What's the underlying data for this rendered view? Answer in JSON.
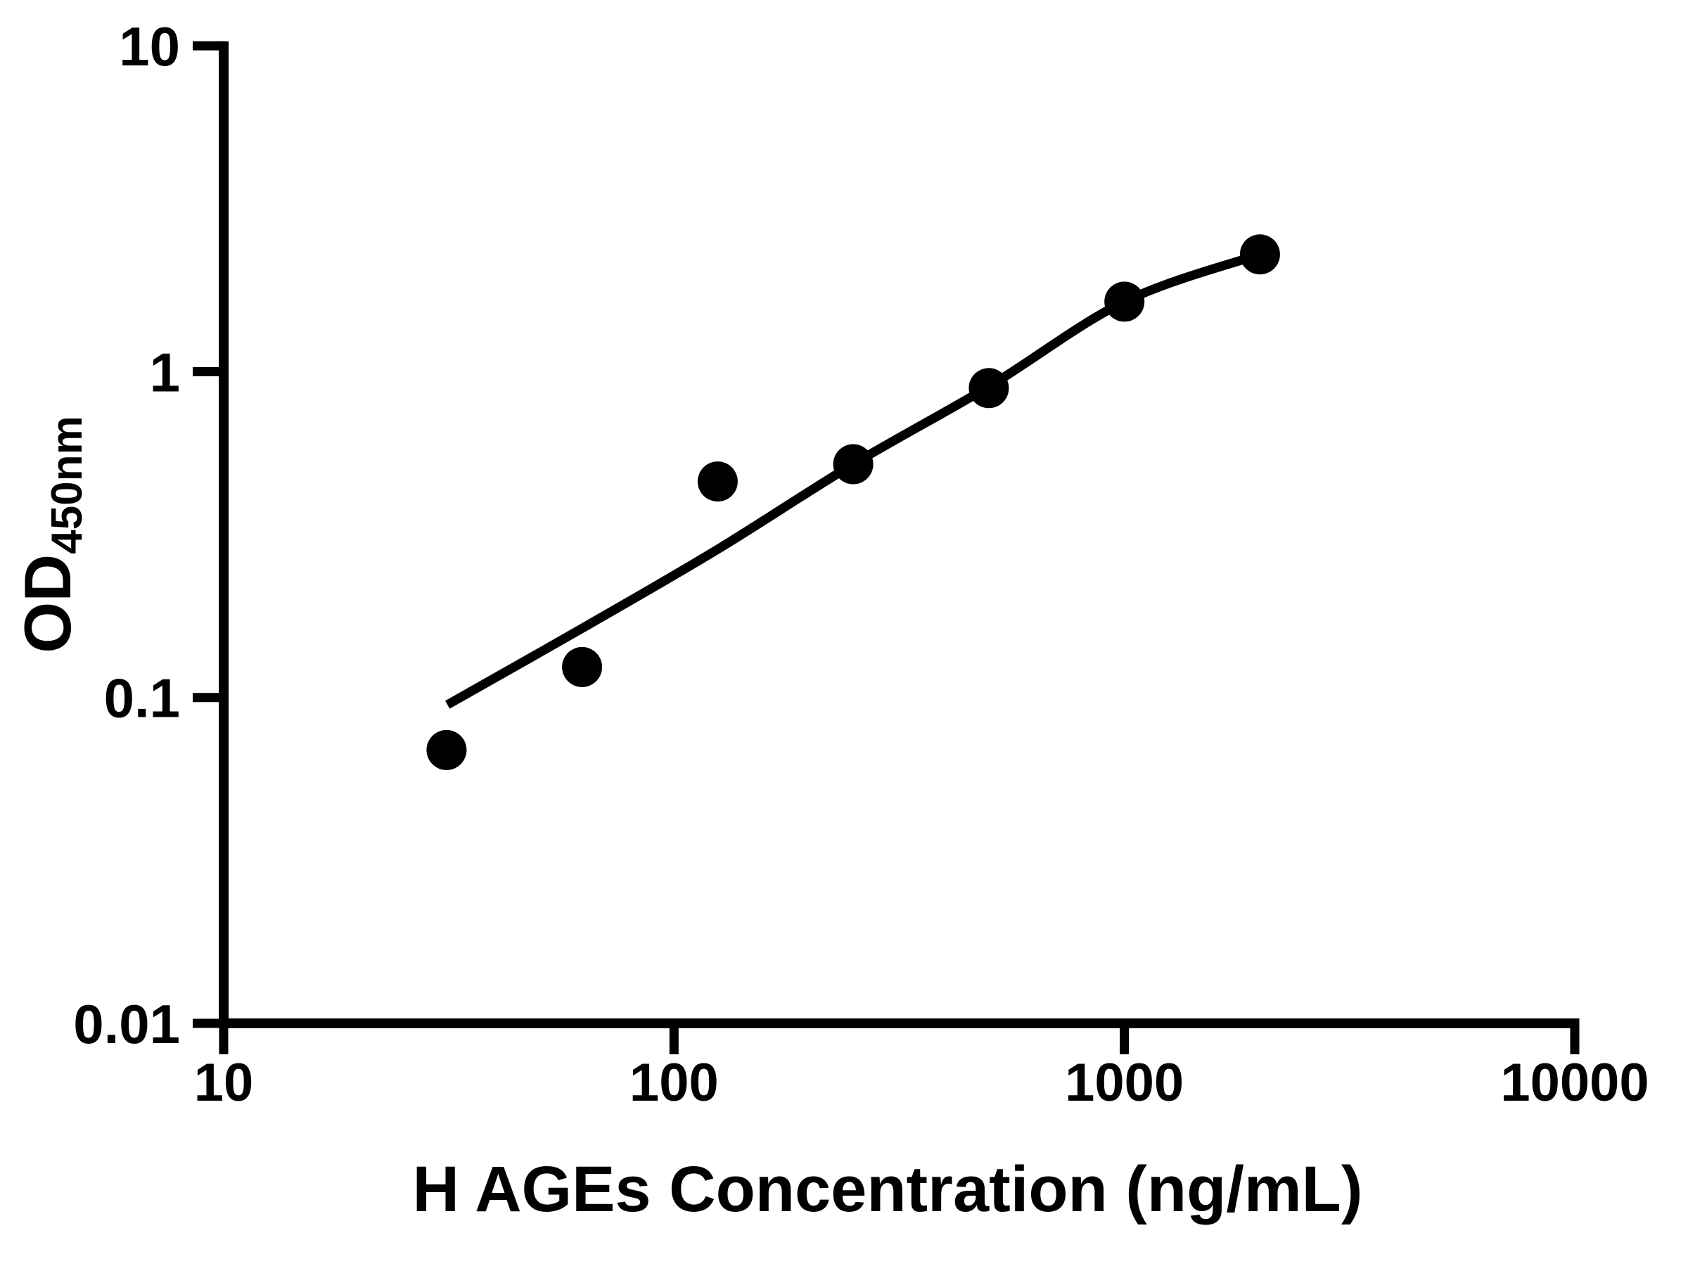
{
  "chart_data": {
    "type": "scatter",
    "title": "",
    "xlabel": "H AGEs Concentration (ng/mL)",
    "ylabel": "OD450nm",
    "ylabel_main": "OD",
    "ylabel_sub": "450nm",
    "x_scale": "log10",
    "y_scale": "log10",
    "xlim": [
      10,
      10000
    ],
    "ylim": [
      0.01,
      10
    ],
    "x_ticks": [
      10,
      100,
      1000,
      10000
    ],
    "x_tick_labels": [
      "10",
      "100",
      "1000",
      "10000"
    ],
    "y_ticks": [
      10,
      1,
      0.1,
      0.01
    ],
    "y_tick_labels": [
      "10",
      "1",
      "0.1",
      "0.01"
    ],
    "grid": false,
    "legend": false,
    "colors": {
      "ink": "#000000",
      "background": "#ffffff"
    },
    "series": [
      {
        "name": "standard-points",
        "type": "scatter",
        "marker": "filled-circle",
        "points": [
          [
            31.25,
            0.069
          ],
          [
            62.5,
            0.124
          ],
          [
            125,
            0.46
          ],
          [
            250,
            0.52
          ],
          [
            500,
            0.89
          ],
          [
            1000,
            1.64
          ],
          [
            2000,
            2.29
          ]
        ]
      },
      {
        "name": "fit-curve",
        "type": "line",
        "points": [
          [
            31.4,
            0.095
          ],
          [
            62.5,
            0.163
          ],
          [
            125,
            0.285
          ],
          [
            250,
            0.52
          ],
          [
            500,
            0.9
          ],
          [
            1000,
            1.64
          ],
          [
            2000,
            2.29
          ]
        ]
      }
    ]
  }
}
